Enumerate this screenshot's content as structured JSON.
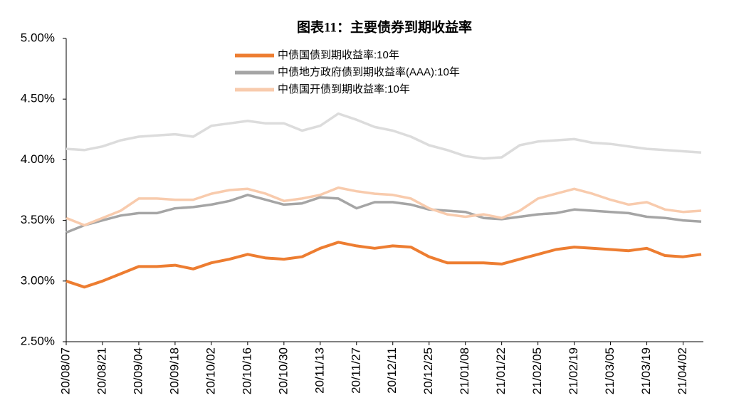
{
  "chart_data": {
    "type": "line",
    "title": "图表11：主要债券到期收益率",
    "x": [
      "20/08/07",
      "20/08/14",
      "20/08/21",
      "20/08/28",
      "20/09/04",
      "20/09/11",
      "20/09/18",
      "20/09/25",
      "20/10/02",
      "20/10/09",
      "20/10/16",
      "20/10/23",
      "20/10/30",
      "20/11/06",
      "20/11/13",
      "20/11/20",
      "20/11/27",
      "20/12/04",
      "20/12/11",
      "20/12/18",
      "20/12/25",
      "21/01/01",
      "21/01/08",
      "21/01/15",
      "21/01/22",
      "21/01/29",
      "21/02/05",
      "21/02/12",
      "21/02/19",
      "21/02/26",
      "21/03/05",
      "21/03/12",
      "21/03/19",
      "21/03/26",
      "21/04/02",
      "21/04/09"
    ],
    "xticks": [
      "20/08/07",
      "20/08/21",
      "20/09/04",
      "20/09/18",
      "20/10/02",
      "20/10/16",
      "20/10/30",
      "20/11/13",
      "20/11/27",
      "20/12/11",
      "20/12/25",
      "21/01/08",
      "21/01/22",
      "21/02/05",
      "21/02/19",
      "21/03/05",
      "21/03/19",
      "21/04/02"
    ],
    "ylim": [
      2.5,
      5.0
    ],
    "yticks": [
      {
        "value": 2.5,
        "label": "2.50%"
      },
      {
        "value": 3.0,
        "label": "3.00%"
      },
      {
        "value": 3.5,
        "label": "3.50%"
      },
      {
        "value": 4.0,
        "label": "4.00%"
      },
      {
        "value": 4.5,
        "label": "4.50%"
      },
      {
        "value": 5.0,
        "label": "5.00%"
      }
    ],
    "legend": "top",
    "series": [
      {
        "name": "中债国债到期收益率:10年",
        "color": "#ed7d31",
        "values": [
          3.0,
          2.95,
          3.0,
          3.06,
          3.12,
          3.12,
          3.13,
          3.1,
          3.15,
          3.18,
          3.22,
          3.19,
          3.18,
          3.2,
          3.27,
          3.32,
          3.29,
          3.27,
          3.29,
          3.28,
          3.2,
          3.15,
          3.15,
          3.15,
          3.14,
          3.18,
          3.22,
          3.26,
          3.28,
          3.27,
          3.26,
          3.25,
          3.27,
          3.21,
          3.2,
          3.22
        ]
      },
      {
        "name": "中债地方政府债到期收益率(AAA):10年",
        "color": "#a5a5a5",
        "values": [
          3.4,
          3.46,
          3.5,
          3.54,
          3.56,
          3.56,
          3.6,
          3.61,
          3.63,
          3.66,
          3.71,
          3.67,
          3.63,
          3.64,
          3.69,
          3.68,
          3.6,
          3.65,
          3.65,
          3.63,
          3.59,
          3.58,
          3.57,
          3.52,
          3.51,
          3.53,
          3.55,
          3.56,
          3.59,
          3.58,
          3.57,
          3.56,
          3.53,
          3.52,
          3.5,
          3.49
        ]
      },
      {
        "name": "中债国开债到期收益率:10年",
        "color": "#f8cbad",
        "values": [
          3.52,
          3.46,
          3.52,
          3.58,
          3.68,
          3.68,
          3.67,
          3.67,
          3.72,
          3.75,
          3.76,
          3.72,
          3.66,
          3.68,
          3.71,
          3.77,
          3.74,
          3.72,
          3.71,
          3.68,
          3.6,
          3.55,
          3.53,
          3.55,
          3.52,
          3.58,
          3.68,
          3.72,
          3.76,
          3.72,
          3.67,
          3.63,
          3.65,
          3.59,
          3.57,
          3.58
        ]
      },
      {
        "color": "#dcdcdc",
        "values": [
          4.09,
          4.08,
          4.11,
          4.16,
          4.19,
          4.2,
          4.21,
          4.19,
          4.28,
          4.3,
          4.32,
          4.3,
          4.3,
          4.24,
          4.28,
          4.38,
          4.33,
          4.27,
          4.24,
          4.19,
          4.12,
          4.08,
          4.03,
          4.01,
          4.02,
          4.12,
          4.15,
          4.16,
          4.17,
          4.14,
          4.13,
          4.11,
          4.09,
          4.08,
          4.07,
          4.06
        ]
      }
    ]
  }
}
